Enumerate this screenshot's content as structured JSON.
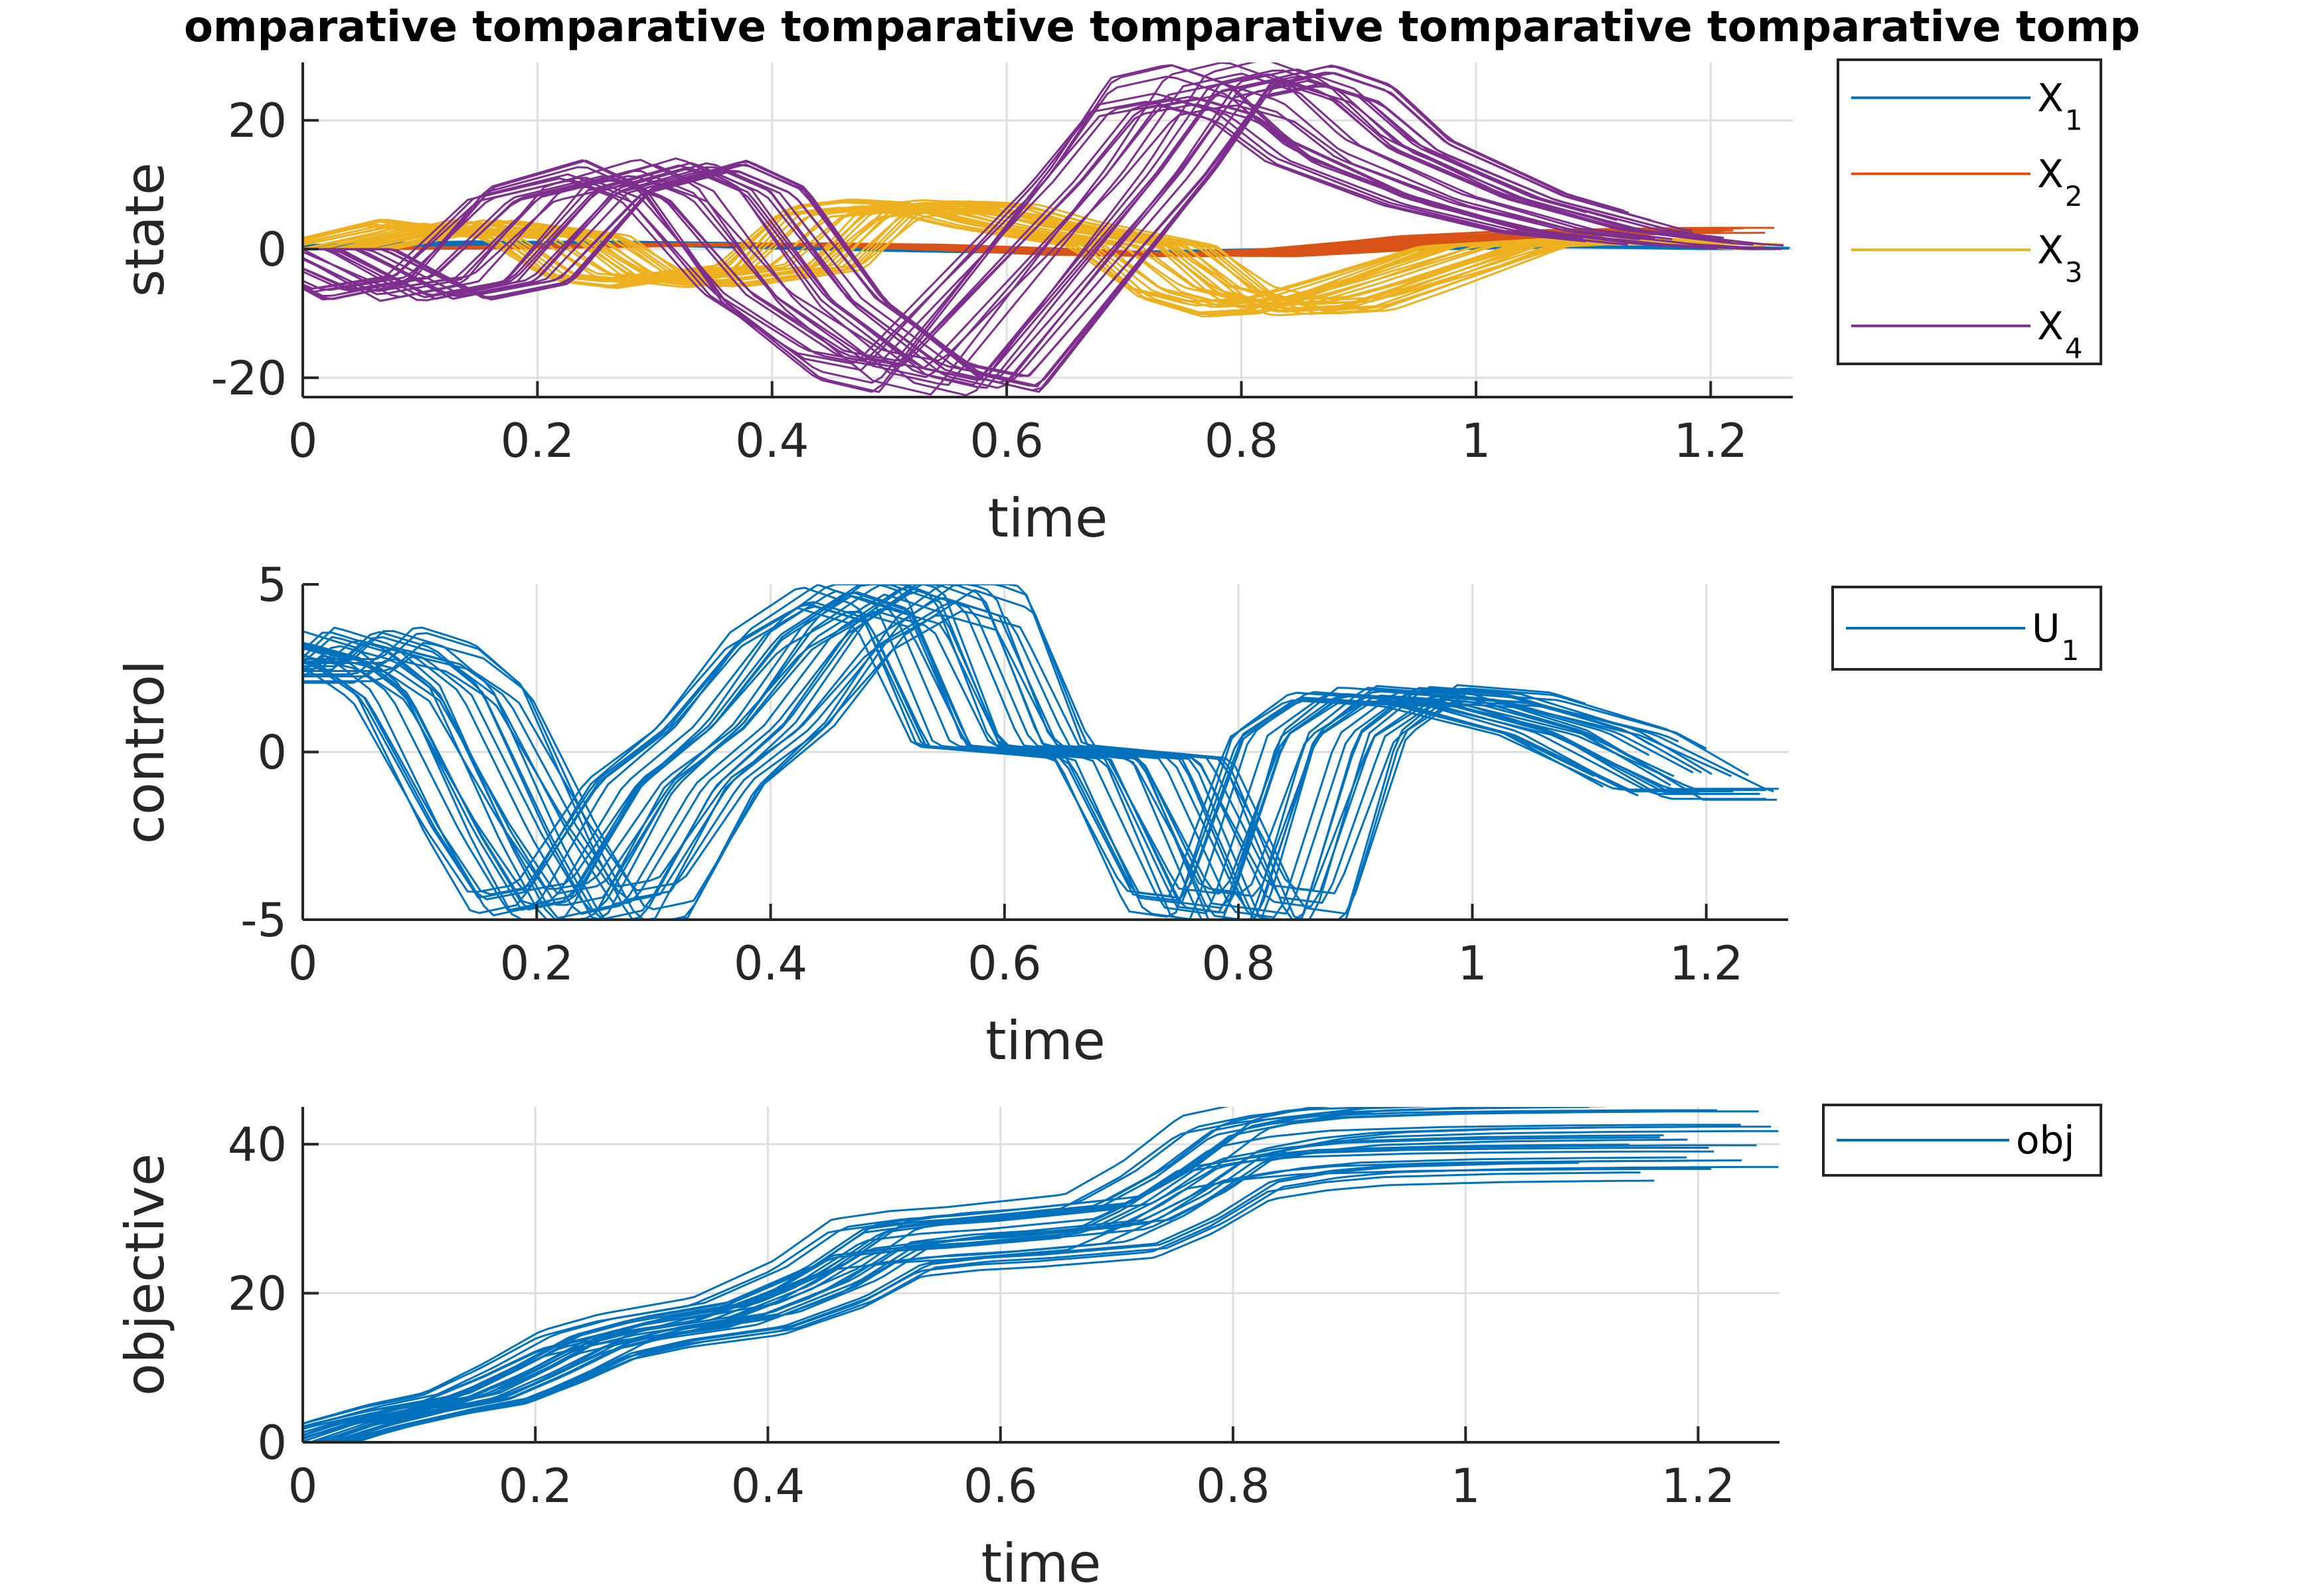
{
  "figure": {
    "title": "omparative tomparative tomparative tomparative tomparative tomparative tomp"
  },
  "chart_data": [
    {
      "type": "line",
      "id": "state",
      "xlabel": "time",
      "ylabel": "state",
      "xlim": [
        0,
        1.27
      ],
      "ylim": [
        -23,
        29
      ],
      "xticks": [
        0,
        0.2,
        0.4,
        0.6,
        0.8,
        1,
        1.2
      ],
      "xtick_labels": [
        "0",
        "0.2",
        "0.4",
        "0.6",
        "0.8",
        "1",
        "1.2"
      ],
      "yticks": [
        -20,
        0,
        20
      ],
      "ytick_labels": [
        "-20",
        "0",
        "20"
      ],
      "grid": true,
      "legend_position": "outside-right",
      "traces_per_series": 30,
      "legend": [
        {
          "label": "X",
          "sub": "1",
          "color": "#0072BD"
        },
        {
          "label": "X",
          "sub": "2",
          "color": "#D95319"
        },
        {
          "label": "X",
          "sub": "3",
          "color": "#EDB120"
        },
        {
          "label": "X",
          "sub": "4",
          "color": "#7E2F8E"
        }
      ],
      "series": [
        {
          "color": "#0072BD",
          "x": [
            0,
            0.1,
            0.2,
            0.3,
            0.4,
            0.5,
            0.6,
            0.7,
            0.8,
            0.9,
            1.0,
            1.1,
            1.2,
            1.27
          ],
          "y": [
            0,
            0.8,
            1.1,
            0.9,
            0.5,
            0.0,
            -0.4,
            -0.6,
            -0.4,
            0.0,
            0.3,
            0.4,
            0.2,
            0
          ]
        },
        {
          "color": "#D95319",
          "x": [
            0,
            0.1,
            0.2,
            0.3,
            0.4,
            0.5,
            0.6,
            0.7,
            0.8,
            0.9,
            1.0,
            1.1,
            1.2,
            1.27
          ],
          "y": [
            0,
            0.1,
            0.3,
            0.6,
            0.8,
            0.6,
            0.0,
            -0.8,
            -1.0,
            0.0,
            1.8,
            2.6,
            2.9,
            3.0
          ]
        },
        {
          "color": "#EDB120",
          "x": [
            0,
            0.1,
            0.2,
            0.25,
            0.3,
            0.4,
            0.45,
            0.5,
            0.55,
            0.6,
            0.7,
            0.75,
            0.8,
            0.85,
            0.9,
            1.0,
            1.1,
            1.2,
            1.27
          ],
          "y": [
            0,
            4.2,
            2.0,
            -4.5,
            -5.5,
            -3.0,
            6.0,
            7.0,
            6.5,
            4.0,
            0.5,
            -7.0,
            -9.5,
            -9.0,
            -6.0,
            0.5,
            1.5,
            0.8,
            0
          ]
        },
        {
          "color": "#7E2F8E",
          "x": [
            0,
            0.08,
            0.15,
            0.22,
            0.3,
            0.35,
            0.42,
            0.5,
            0.55,
            0.6,
            0.7,
            0.75,
            0.8,
            0.85,
            0.9,
            1.0,
            1.1,
            1.2,
            1.27
          ],
          "y": [
            0,
            -7.5,
            -5.0,
            9.0,
            13.0,
            9.0,
            -8.0,
            -19.0,
            -21.0,
            -10.0,
            12.0,
            25.0,
            27.0,
            24.0,
            16.0,
            8.0,
            3.0,
            0.8,
            0
          ]
        }
      ]
    },
    {
      "type": "line",
      "id": "control",
      "xlabel": "time",
      "ylabel": "control",
      "xlim": [
        0,
        1.27
      ],
      "ylim": [
        -5,
        5
      ],
      "xticks": [
        0,
        0.2,
        0.4,
        0.6,
        0.8,
        1,
        1.2
      ],
      "xtick_labels": [
        "0",
        "0.2",
        "0.4",
        "0.6",
        "0.8",
        "1",
        "1.2"
      ],
      "yticks": [
        -5,
        0,
        5
      ],
      "ytick_labels": [
        "-5",
        "0",
        "5"
      ],
      "grid": true,
      "legend_position": "outside-right",
      "traces_per_series": 30,
      "legend": [
        {
          "label": "U",
          "sub": "1",
          "color": "#0072BD"
        }
      ],
      "series": [
        {
          "color": "#0072BD",
          "x": [
            0,
            0.03,
            0.08,
            0.12,
            0.18,
            0.22,
            0.26,
            0.32,
            0.38,
            0.44,
            0.5,
            0.55,
            0.6,
            0.66,
            0.72,
            0.78,
            0.82,
            0.87,
            0.92,
            1.0,
            1.1,
            1.2
          ],
          "y": [
            2.5,
            3.4,
            2.9,
            1.8,
            -2.5,
            -4.9,
            -4.6,
            -1.0,
            0.8,
            3.6,
            5.0,
            4.4,
            0.2,
            0.0,
            -0.2,
            -4.8,
            -5.0,
            0.5,
            1.8,
            1.6,
            0.6,
            -1.3
          ]
        }
      ]
    },
    {
      "type": "line",
      "id": "objective",
      "xlabel": "time",
      "ylabel": "objective",
      "xlim": [
        0,
        1.27
      ],
      "ylim": [
        0,
        45
      ],
      "xticks": [
        0,
        0.2,
        0.4,
        0.6,
        0.8,
        1,
        1.2
      ],
      "xtick_labels": [
        "0",
        "0.2",
        "0.4",
        "0.6",
        "0.8",
        "1",
        "1.2"
      ],
      "yticks": [
        0,
        20,
        40
      ],
      "ytick_labels": [
        "0",
        "20",
        "40"
      ],
      "grid": true,
      "legend_position": "outside-right",
      "traces_per_series": 30,
      "legend": [
        {
          "label": "obj",
          "sub": "",
          "color": "#0072BD"
        }
      ],
      "series": [
        {
          "color": "#0072BD",
          "x": [
            0,
            0.05,
            0.1,
            0.15,
            0.2,
            0.25,
            0.3,
            0.38,
            0.45,
            0.5,
            0.55,
            0.6,
            0.7,
            0.75,
            0.8,
            0.85,
            0.9,
            1.0,
            1.1,
            1.2
          ],
          "y": [
            0,
            2.5,
            4.5,
            6.0,
            9.5,
            13.5,
            15.5,
            17.5,
            22.0,
            27.0,
            28.0,
            28.5,
            30.0,
            34.0,
            39.5,
            41.0,
            41.8,
            42.3,
            42.5,
            42.6
          ]
        }
      ]
    }
  ]
}
